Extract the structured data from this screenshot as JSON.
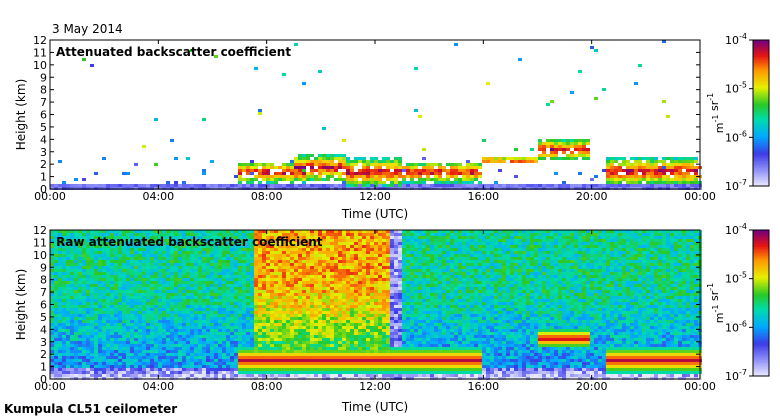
{
  "date": "3 May 2014",
  "footer": "Kumpula CL51 ceilometer",
  "chart_data": [
    {
      "type": "heatmap",
      "title": "Attenuated backscatter coefficient",
      "xlabel": "Time (UTC)",
      "ylabel": "Height (km)",
      "x_ticks": [
        "00:00",
        "04:00",
        "08:00",
        "12:00",
        "16:00",
        "20:00",
        "00:00"
      ],
      "y_ticks": [
        "0",
        "1",
        "2",
        "3",
        "4",
        "5",
        "6",
        "7",
        "8",
        "9",
        "10",
        "11",
        "12"
      ],
      "xlim_hours": [
        0,
        24
      ],
      "ylim_km": [
        0,
        12
      ],
      "colorbar": {
        "label": "m-1 sr-1",
        "ticks": [
          "10-7",
          "10-6",
          "10-5",
          "10-4"
        ],
        "scale": "log",
        "range": [
          1e-07,
          0.0001
        ]
      },
      "features": [
        {
          "kind": "low-level aerosol layer",
          "start_hour": 0,
          "end_hour": 24,
          "height_km": [
            0,
            0.5
          ]
        },
        {
          "kind": "cloud layer",
          "start_hour": 7.0,
          "end_hour": 9.5,
          "height_km": [
            0.5,
            2.2
          ]
        },
        {
          "kind": "cloud layer",
          "start_hour": 9.0,
          "end_hour": 11.0,
          "height_km": [
            0.6,
            2.8
          ]
        },
        {
          "kind": "cloud layer",
          "start_hour": 11.0,
          "end_hour": 13.0,
          "height_km": [
            0.2,
            2.5
          ]
        },
        {
          "kind": "cloud layer",
          "start_hour": 13.0,
          "end_hour": 16.0,
          "height_km": [
            0.5,
            2.2
          ]
        },
        {
          "kind": "cloud layer",
          "start_hour": 16.0,
          "end_hour": 18.0,
          "height_km": [
            2.0,
            2.6
          ]
        },
        {
          "kind": "cloud layer",
          "start_hour": 18.0,
          "end_hour": 20.0,
          "height_km": [
            2.3,
            4.0
          ]
        },
        {
          "kind": "cloud layer",
          "start_hour": 20.5,
          "end_hour": 24.0,
          "height_km": [
            0.3,
            2.5
          ]
        }
      ]
    },
    {
      "type": "heatmap",
      "title": "Raw attenuated backscatter coefficient",
      "xlabel": "Time (UTC)",
      "ylabel": "Height (km)",
      "x_ticks": [
        "00:00",
        "04:00",
        "08:00",
        "12:00",
        "16:00",
        "20:00",
        "00:00"
      ],
      "y_ticks": [
        "0",
        "1",
        "2",
        "3",
        "4",
        "5",
        "6",
        "7",
        "8",
        "9",
        "10",
        "11",
        "12"
      ],
      "xlim_hours": [
        0,
        24
      ],
      "ylim_km": [
        0,
        12
      ],
      "colorbar": {
        "label": "m-1 sr-1",
        "ticks": [
          "10-7",
          "10-6",
          "10-5",
          "10-4"
        ],
        "scale": "log",
        "range": [
          1e-07,
          0.0001
        ]
      },
      "features": [
        {
          "kind": "noisy background",
          "start_hour": 0,
          "end_hour": 24,
          "height_km": [
            0,
            12
          ]
        },
        {
          "kind": "high noise region",
          "start_hour": 7.5,
          "end_hour": 12.5,
          "height_km": [
            2,
            12
          ]
        },
        {
          "kind": "rain gap",
          "start_hour": 12.5,
          "end_hour": 13.0,
          "height_km": [
            0,
            12
          ]
        },
        {
          "kind": "cloud layer",
          "start_hour": 7.0,
          "end_hour": 16.0,
          "height_km": [
            0.5,
            2.5
          ]
        },
        {
          "kind": "cloud layer",
          "start_hour": 18.0,
          "end_hour": 20.0,
          "height_km": [
            2.5,
            4.0
          ]
        },
        {
          "kind": "cloud layer",
          "start_hour": 20.5,
          "end_hour": 24.0,
          "height_km": [
            0.5,
            2.5
          ]
        }
      ]
    }
  ]
}
